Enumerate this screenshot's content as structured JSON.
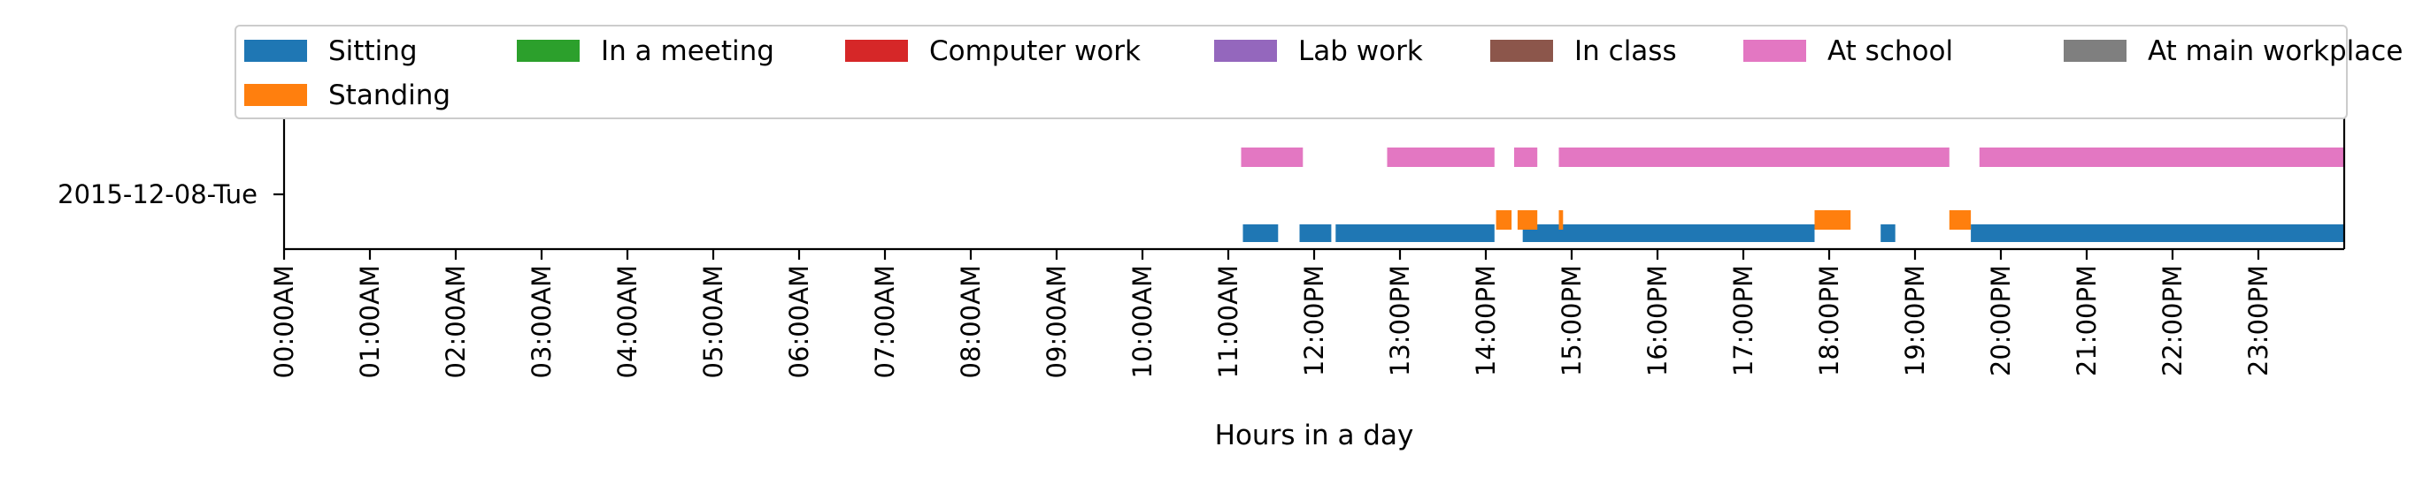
{
  "chart_data": {
    "type": "timeline",
    "title": "",
    "xlabel": "Hours in a day",
    "ylabel": "",
    "xlim": [
      0,
      24
    ],
    "x_ticks": [
      "00:00AM",
      "01:00AM",
      "02:00AM",
      "03:00AM",
      "04:00AM",
      "05:00AM",
      "06:00AM",
      "07:00AM",
      "08:00AM",
      "09:00AM",
      "10:00AM",
      "11:00AM",
      "12:00PM",
      "13:00PM",
      "14:00PM",
      "15:00PM",
      "16:00PM",
      "17:00PM",
      "18:00PM",
      "19:00PM",
      "20:00PM",
      "21:00PM",
      "22:00PM",
      "23:00PM"
    ],
    "categories": [
      "2015-12-08-Tue"
    ],
    "legend_position": "top",
    "grid": false,
    "legend": [
      {
        "name": "Sitting",
        "color": "#1f77b4"
      },
      {
        "name": "Standing",
        "color": "#ff7f0e"
      },
      {
        "name": "In a meeting",
        "color": "#2ca02c"
      },
      {
        "name": "Computer work",
        "color": "#d62728"
      },
      {
        "name": "Lab work",
        "color": "#9467bd"
      },
      {
        "name": "In class",
        "color": "#8c564b"
      },
      {
        "name": "At school",
        "color": "#e377c2"
      },
      {
        "name": "At main workplace",
        "color": "#7f7f7f"
      }
    ],
    "series": [
      {
        "name": "Sitting",
        "color": "#1f77b4",
        "lane": 0,
        "intervals": [
          [
            11.17,
            11.58
          ],
          [
            11.83,
            12.2
          ],
          [
            12.25,
            14.1
          ],
          [
            14.43,
            17.83
          ],
          [
            18.6,
            18.77
          ],
          [
            19.65,
            24.0
          ]
        ]
      },
      {
        "name": "Standing",
        "color": "#ff7f0e",
        "lane": 1,
        "intervals": [
          [
            14.12,
            14.3
          ],
          [
            14.37,
            14.6
          ],
          [
            14.85,
            14.9
          ],
          [
            17.83,
            18.25
          ],
          [
            19.4,
            19.65
          ]
        ]
      },
      {
        "name": "At school",
        "color": "#e377c2",
        "lane": 2,
        "intervals": [
          [
            11.15,
            11.87
          ],
          [
            12.85,
            14.1
          ],
          [
            14.33,
            14.6
          ],
          [
            14.85,
            19.4
          ],
          [
            19.75,
            24.0
          ]
        ]
      }
    ]
  }
}
